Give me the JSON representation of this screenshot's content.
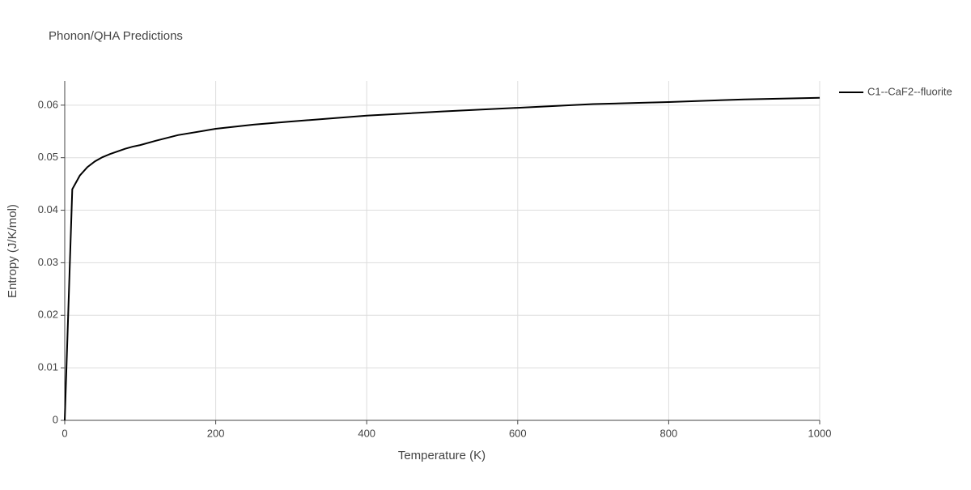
{
  "chart_data": {
    "type": "line",
    "title": "Phonon/QHA Predictions",
    "x_label": "Temperature (K)",
    "y_label": "Entropy (J/K/mol)",
    "x": [
      0,
      10,
      20,
      30,
      40,
      50,
      60,
      70,
      80,
      90,
      100,
      120,
      150,
      200,
      250,
      300,
      400,
      500,
      600,
      700,
      800,
      900,
      1000
    ],
    "series": [
      {
        "name": "C1--CaF2--fluorite",
        "color": "#000000",
        "values": [
          0,
          0.044,
          0.0466,
          0.0482,
          0.0493,
          0.0501,
          0.0507,
          0.0512,
          0.0517,
          0.0521,
          0.0524,
          0.0532,
          0.0543,
          0.0555,
          0.0563,
          0.0569,
          0.058,
          0.0588,
          0.0595,
          0.0602,
          0.0606,
          0.0611,
          0.0614
        ]
      }
    ],
    "xlim": [
      0,
      1000
    ],
    "xticks": [
      0,
      200,
      400,
      600,
      800,
      1000
    ],
    "ylim": [
      0,
      0.0646
    ],
    "yticks": [
      0,
      0.01,
      0.02,
      0.03,
      0.04,
      0.05,
      0.06
    ],
    "grid": true,
    "legend": "right"
  }
}
